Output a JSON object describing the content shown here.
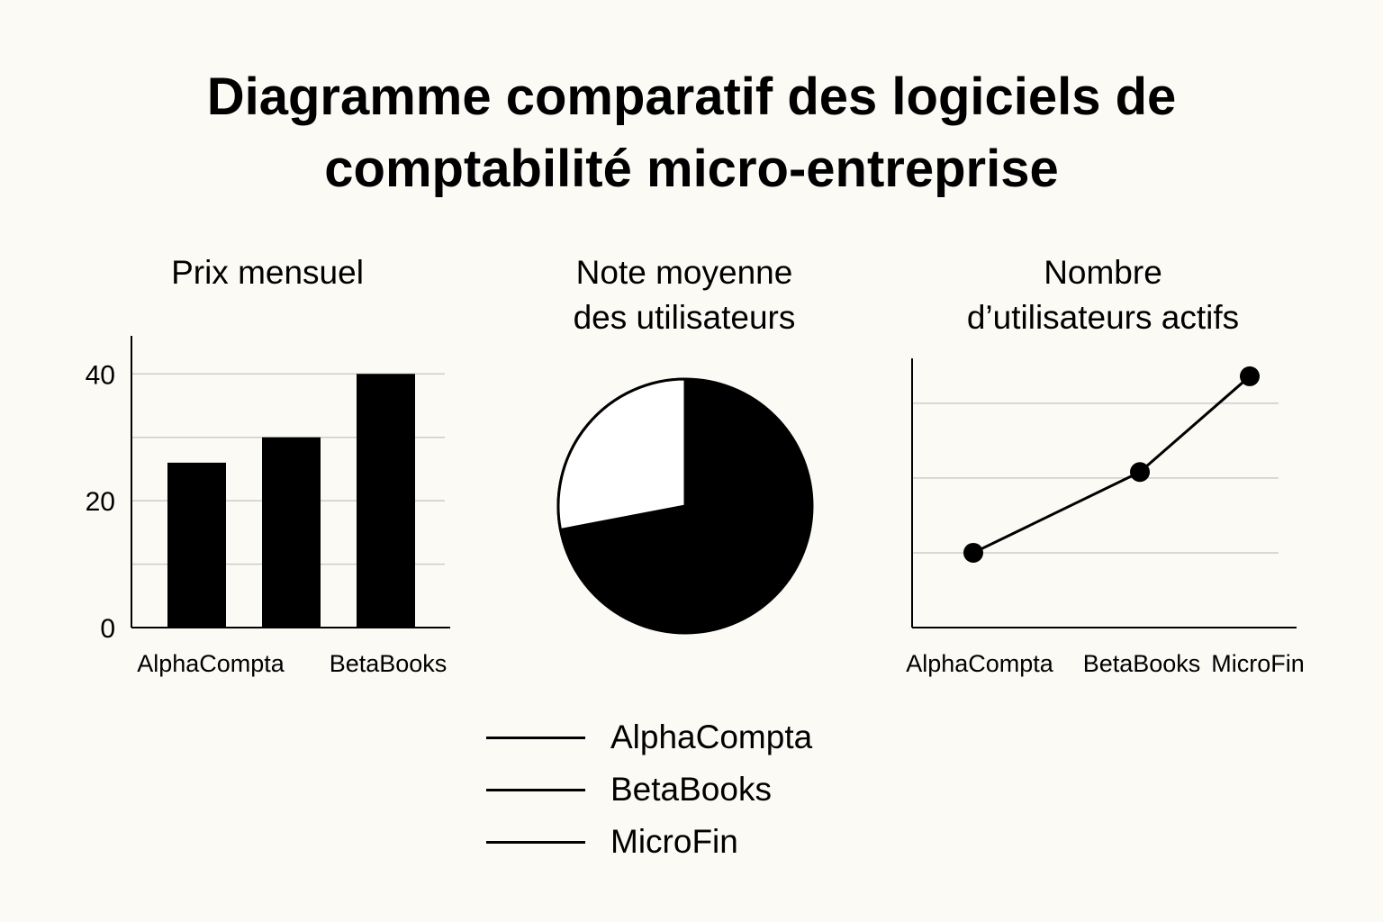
{
  "title_lines": [
    "Diagramme comparatif des logiciels de",
    "comptabilité micro-entreprise"
  ],
  "colors": {
    "background": "#fcfaf5",
    "ink": "#000000",
    "grid": "#cccccc",
    "pie_light": "#ffffff"
  },
  "chart_data": [
    {
      "type": "bar",
      "title_lines": [
        "Prix mensuel"
      ],
      "categories": [
        "AlphaCompta",
        "",
        "BetaBooks"
      ],
      "category_labels": [
        "AlphaCompta",
        "BetaBooks"
      ],
      "values": [
        26,
        30,
        40
      ],
      "yticks": [
        0,
        20,
        40
      ],
      "ylim": [
        0,
        46
      ],
      "grid": true
    },
    {
      "type": "pie",
      "title_lines": [
        "Note moyenne",
        "des utilisateurs"
      ],
      "values": [
        72,
        28
      ]
    },
    {
      "type": "line",
      "title_lines": [
        "Nombre",
        "d’utilisateurs actifs"
      ],
      "categories": [
        "AlphaCompta",
        "BetaBooks",
        "MicroFin"
      ],
      "values": [
        1,
        2.08,
        3.36
      ],
      "ylim": [
        0,
        3.6
      ],
      "grid": true
    }
  ],
  "legend": {
    "items": [
      "AlphaCompta",
      "BetaBooks",
      "MicroFin"
    ],
    "placement": "bottom-center"
  }
}
